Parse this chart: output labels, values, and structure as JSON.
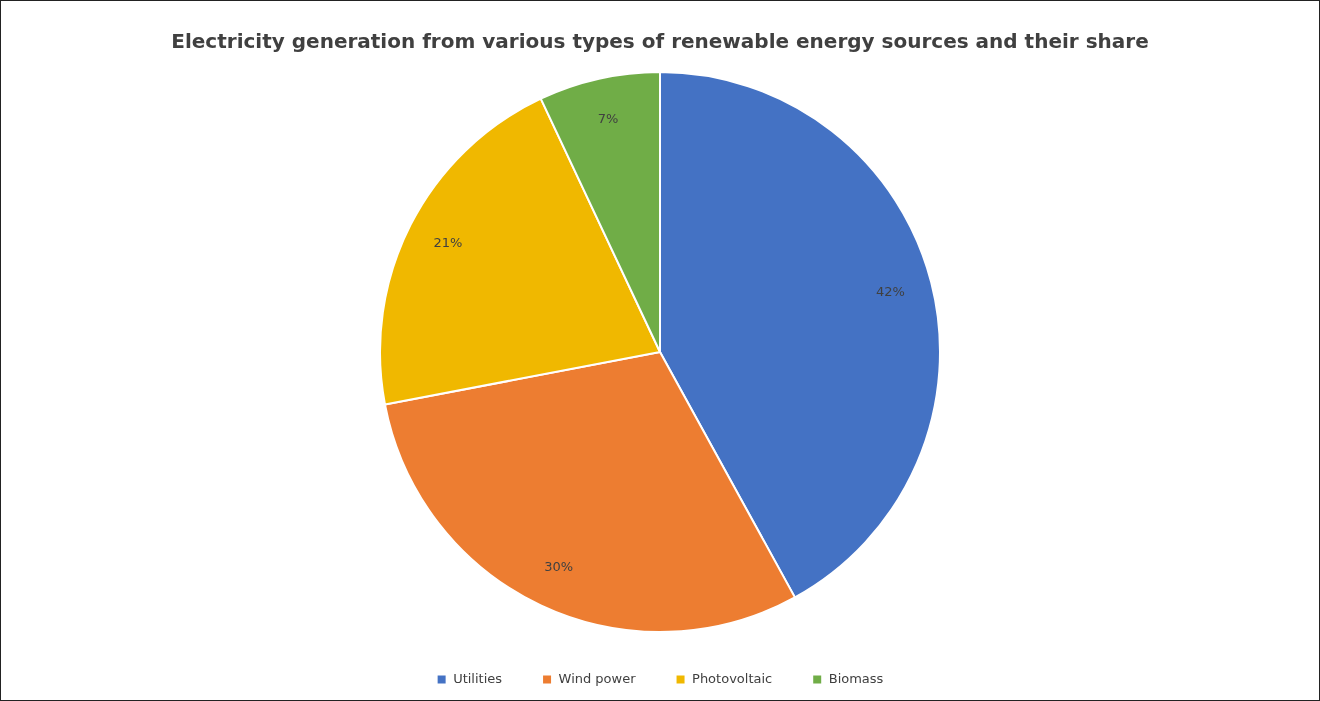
{
  "chart_data": {
    "type": "pie",
    "title": "Electricity generation from various types of renewable energy sources and their share",
    "categories": [
      "Utilities",
      "Wind power",
      "Photovoltaic",
      "Biomass"
    ],
    "values": [
      42,
      30,
      21,
      7
    ],
    "value_labels": [
      "42%",
      "30%",
      "21%",
      "7%"
    ],
    "colors": [
      "#4472c4",
      "#ed7d31",
      "#f0b800",
      "#70ad47"
    ],
    "legend": "bottom"
  }
}
